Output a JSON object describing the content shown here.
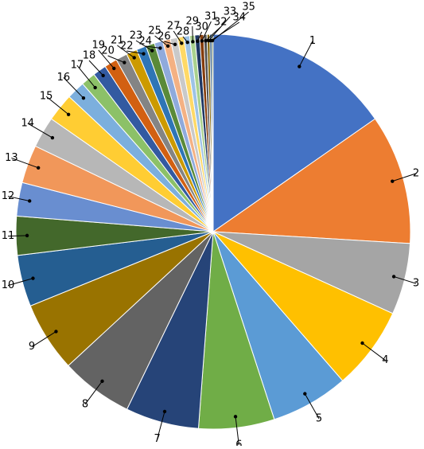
{
  "chart_data": {
    "type": "pie",
    "categories": [
      "1",
      "2",
      "3",
      "4",
      "5",
      "6",
      "7",
      "8",
      "9",
      "10",
      "11",
      "12",
      "13",
      "14",
      "15",
      "16",
      "17",
      "18",
      "19",
      "20",
      "21",
      "22",
      "23",
      "24",
      "25",
      "26",
      "27",
      "28",
      "29",
      "30",
      "31",
      "32",
      "33",
      "34",
      "35"
    ],
    "values": [
      55.3,
      38.4,
      21.1,
      24.6,
      23.0,
      22.4,
      21.7,
      21.4,
      20.7,
      15.2,
      11.5,
      9.9,
      11.3,
      9.2,
      8.3,
      5.4,
      4.3,
      4.0,
      3.8,
      3.4,
      3.2,
      2.9,
      2.6,
      2.5,
      2.3,
      2.1,
      1.9,
      1.7,
      1.5,
      1.4,
      1.2,
      1.0,
      0.8,
      0.6,
      0.4
    ],
    "colors": [
      "#4472c4",
      "#ed7d31",
      "#a5a5a5",
      "#ffc000",
      "#5b9bd5",
      "#70ad47",
      "#264478",
      "#636363",
      "#997300",
      "#255e91",
      "#43682b",
      "#698ed0",
      "#f1975a",
      "#b7b7b7",
      "#ffcd33",
      "#7cafdd",
      "#8cc168",
      "#335aa1",
      "#d26012",
      "#848484",
      "#cc9a00",
      "#2e75b6",
      "#5a8a39",
      "#8faadc",
      "#f4b183",
      "#c9c9c9",
      "#ffd966",
      "#9dc3e6",
      "#a9d18e",
      "#1f3864",
      "#843c0c",
      "#525252",
      "#7f6000",
      "#1f4e79",
      "#385723"
    ]
  }
}
